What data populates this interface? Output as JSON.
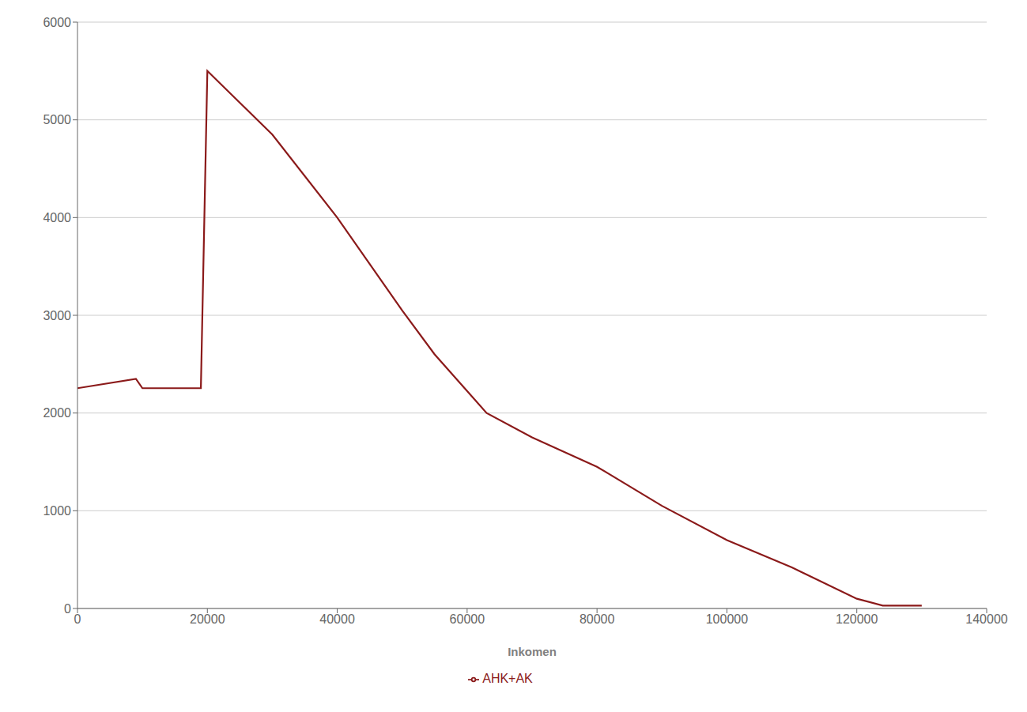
{
  "chart_data": {
    "type": "line",
    "xlabel": "Inkomen",
    "x": [
      0,
      9000,
      10000,
      19000,
      20000,
      30000,
      40000,
      50000,
      55000,
      63000,
      70000,
      80000,
      90000,
      100000,
      110000,
      120000,
      124000,
      130000
    ],
    "series": [
      {
        "name": "AHK+AK",
        "color": "#8B1A1A",
        "values": [
          2254,
          2350,
          2254,
          2254,
          5500,
          4850,
          4000,
          3050,
          2600,
          2000,
          1750,
          1450,
          1050,
          700,
          420,
          100,
          30,
          30
        ]
      }
    ],
    "xlim": [
      0,
      140000
    ],
    "ylim": [
      0,
      6000
    ],
    "xticks": [
      0,
      20000,
      40000,
      60000,
      80000,
      100000,
      120000,
      140000
    ],
    "yticks": [
      0,
      1000,
      2000,
      3000,
      4000,
      5000,
      6000
    ],
    "grid": true,
    "legend": "bottom"
  }
}
